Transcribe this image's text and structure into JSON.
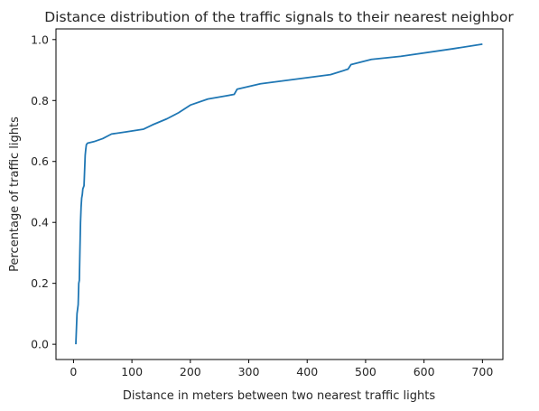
{
  "chart_data": {
    "type": "line",
    "title": "Distance distribution of the traffic signals to their nearest neighbor",
    "xlabel": "Distance in meters between two nearest traffic lights",
    "ylabel": "Percentage of traffic lights",
    "xlim": [
      -30,
      735
    ],
    "ylim": [
      -0.05,
      1.035
    ],
    "xticks": [
      0,
      100,
      200,
      300,
      400,
      500,
      600,
      700
    ],
    "xtick_labels": [
      "0",
      "100",
      "200",
      "300",
      "400",
      "500",
      "600",
      "700"
    ],
    "yticks": [
      0.0,
      0.2,
      0.4,
      0.6,
      0.8,
      1.0
    ],
    "ytick_labels": [
      "0.0",
      "0.2",
      "0.4",
      "0.6",
      "0.8",
      "1.0"
    ],
    "grid": false,
    "series": [
      {
        "color": "#1f77b4",
        "x": [
          4,
          6,
          8,
          9,
          10,
          11,
          12,
          13,
          14,
          15,
          16,
          18,
          20,
          21,
          22,
          24,
          35,
          50,
          65,
          90,
          120,
          135,
          160,
          180,
          200,
          230,
          260,
          275,
          280,
          320,
          400,
          440,
          470,
          475,
          510,
          560,
          650,
          700
        ],
        "y": [
          0.0,
          0.1,
          0.13,
          0.2,
          0.21,
          0.31,
          0.4,
          0.45,
          0.48,
          0.49,
          0.51,
          0.52,
          0.62,
          0.64,
          0.655,
          0.66,
          0.665,
          0.675,
          0.69,
          0.697,
          0.706,
          0.72,
          0.74,
          0.76,
          0.785,
          0.805,
          0.815,
          0.82,
          0.837,
          0.855,
          0.875,
          0.885,
          0.903,
          0.918,
          0.935,
          0.945,
          0.97,
          0.985
        ]
      }
    ]
  }
}
